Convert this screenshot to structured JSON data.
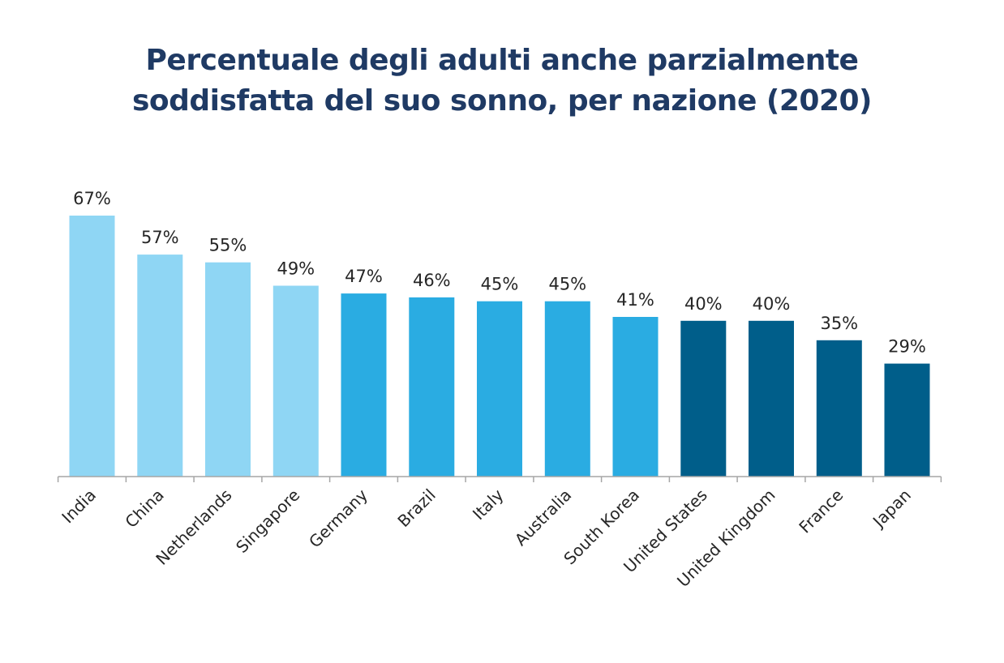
{
  "chart_data": {
    "type": "bar",
    "title_lines": [
      "Percentuale degli adulti anche parzialmente",
      "soddisfatta del suo sonno, per nazione (2020)"
    ],
    "categories": [
      "India",
      "China",
      "Netherlands",
      "Singapore",
      "Germany",
      "Brazil",
      "Italy",
      "Australia",
      "South Korea",
      "United States",
      "United Kingdom",
      "France",
      "Japan"
    ],
    "values": [
      67,
      57,
      55,
      49,
      47,
      46,
      45,
      45,
      41,
      40,
      40,
      35,
      29
    ],
    "value_labels": [
      "67%",
      "57%",
      "55%",
      "49%",
      "47%",
      "46%",
      "45%",
      "45%",
      "41%",
      "40%",
      "40%",
      "35%",
      "29%"
    ],
    "bar_colors": [
      "#8fd6f4",
      "#8fd6f4",
      "#8fd6f4",
      "#8fd6f4",
      "#2aace2",
      "#2aace2",
      "#2aace2",
      "#2aace2",
      "#2aace2",
      "#005e8a",
      "#005e8a",
      "#005e8a",
      "#005e8a"
    ],
    "ylim": [
      0,
      67
    ],
    "grid": false,
    "title_color": "#1f3a64",
    "axis_color": "#a6a6a6",
    "label_color": "#262626"
  }
}
